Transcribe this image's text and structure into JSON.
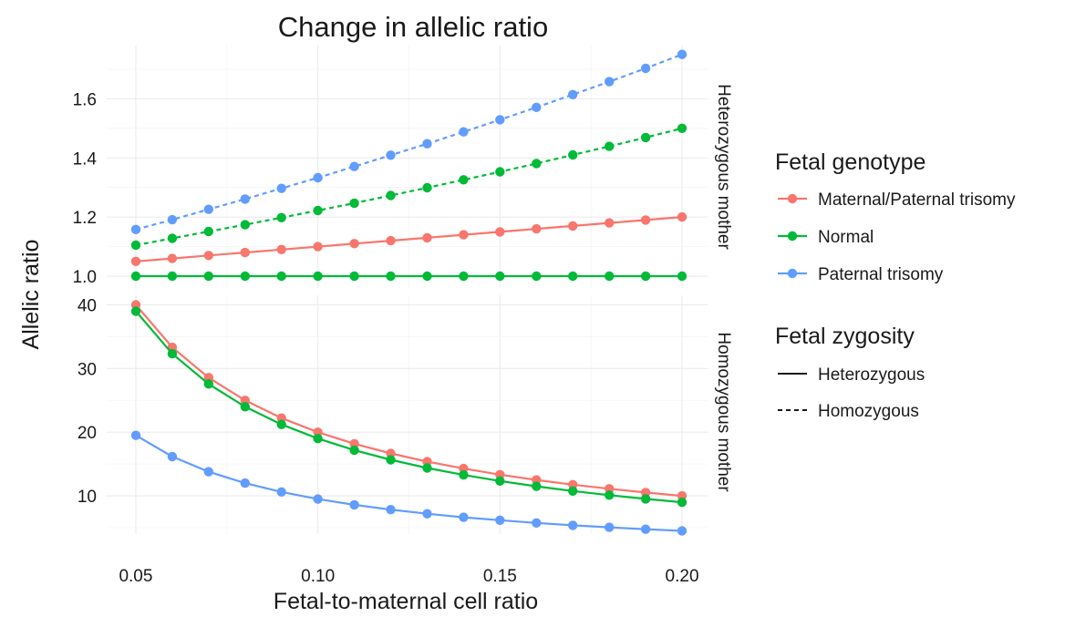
{
  "chart_data": {
    "type": "line",
    "title": "Change in allelic ratio",
    "xlabel": "Fetal-to-maternal cell ratio",
    "ylabel": "Allelic ratio",
    "x": [
      0.05,
      0.06,
      0.07,
      0.08,
      0.09,
      0.1,
      0.11,
      0.12,
      0.13,
      0.14,
      0.15,
      0.16,
      0.17,
      0.18,
      0.19,
      0.2
    ],
    "x_ticks": [
      "0.05",
      "0.10",
      "0.15",
      "0.20"
    ],
    "xlim": [
      0.042,
      0.207
    ],
    "grid": true,
    "legend_position": "right",
    "colors": {
      "Maternal/Paternal trisomy": "#F8766D",
      "Normal": "#00BA38",
      "Paternal trisomy": "#619CFF"
    },
    "legends": {
      "genotype": {
        "title": "Fetal genotype",
        "items": [
          "Maternal/Paternal trisomy",
          "Normal",
          "Paternal trisomy"
        ]
      },
      "zygosity": {
        "title": "Fetal zygosity",
        "items": [
          "Heterozygous",
          "Homozygous"
        ]
      }
    },
    "panels": [
      {
        "strip": "Heterozygous mother",
        "ylim": [
          0.96,
          1.78
        ],
        "y_ticks": [
          "1.0",
          "1.2",
          "1.4",
          "1.6"
        ],
        "y_tick_values": [
          1.0,
          1.2,
          1.4,
          1.6
        ],
        "series": [
          {
            "genotype": "Maternal/Paternal trisomy",
            "zygosity": "Heterozygous",
            "values": [
              1.05,
              1.06,
              1.07,
              1.08,
              1.09,
              1.1,
              1.11,
              1.12,
              1.13,
              1.14,
              1.15,
              1.16,
              1.17,
              1.18,
              1.19,
              1.2
            ]
          },
          {
            "genotype": "Normal",
            "zygosity": "Heterozygous",
            "values": [
              1.0,
              1.0,
              1.0,
              1.0,
              1.0,
              1.0,
              1.0,
              1.0,
              1.0,
              1.0,
              1.0,
              1.0,
              1.0,
              1.0,
              1.0,
              1.0
            ]
          },
          {
            "genotype": "Normal",
            "zygosity": "Homozygous",
            "values": [
              1.105,
              1.128,
              1.151,
              1.174,
              1.198,
              1.222,
              1.247,
              1.273,
              1.299,
              1.326,
              1.353,
              1.381,
              1.41,
              1.439,
              1.469,
              1.5
            ]
          },
          {
            "genotype": "Paternal trisomy",
            "zygosity": "Homozygous",
            "values": [
              1.158,
              1.191,
              1.226,
              1.261,
              1.297,
              1.333,
              1.371,
              1.409,
              1.448,
              1.488,
              1.529,
              1.571,
              1.614,
              1.658,
              1.703,
              1.75
            ]
          }
        ]
      },
      {
        "strip": "Homozygous mother",
        "ylim": [
          4.0,
          41.5
        ],
        "y_ticks": [
          "10",
          "20",
          "30",
          "40"
        ],
        "y_tick_values": [
          10,
          20,
          30,
          40
        ],
        "series": [
          {
            "genotype": "Maternal/Paternal trisomy",
            "zygosity": "Heterozygous",
            "values": [
              40.0,
              33.33,
              28.57,
              25.0,
              22.22,
              20.0,
              18.18,
              16.67,
              15.38,
              14.29,
              13.33,
              12.5,
              11.76,
              11.11,
              10.53,
              10.0
            ]
          },
          {
            "genotype": "Normal",
            "zygosity": "Heterozygous",
            "values": [
              39.0,
              32.33,
              27.57,
              24.0,
              21.22,
              19.0,
              17.18,
              15.67,
              14.38,
              13.29,
              12.33,
              11.5,
              10.76,
              10.11,
              9.53,
              9.0
            ]
          },
          {
            "genotype": "Paternal trisomy",
            "zygosity": "Heterozygous",
            "values": [
              19.5,
              16.17,
              13.79,
              12.0,
              10.61,
              9.5,
              8.59,
              7.83,
              7.19,
              6.64,
              6.17,
              5.75,
              5.38,
              5.06,
              4.76,
              4.5
            ]
          }
        ]
      }
    ]
  }
}
